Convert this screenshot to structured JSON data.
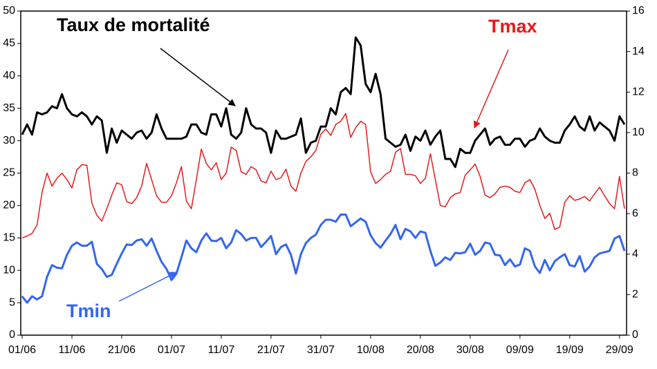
{
  "chart_data": {
    "type": "line",
    "categories": [
      "01/06",
      null,
      null,
      null,
      null,
      null,
      null,
      null,
      null,
      null,
      "11/06",
      null,
      null,
      null,
      null,
      null,
      null,
      null,
      null,
      null,
      "21/06",
      null,
      null,
      null,
      null,
      null,
      null,
      null,
      null,
      null,
      "01/07",
      null,
      null,
      null,
      null,
      null,
      null,
      null,
      null,
      null,
      "11/07",
      null,
      null,
      null,
      null,
      null,
      null,
      null,
      null,
      null,
      "21/07",
      null,
      null,
      null,
      null,
      null,
      null,
      null,
      null,
      null,
      "31/07",
      null,
      null,
      null,
      null,
      null,
      null,
      null,
      null,
      null,
      "10/08",
      null,
      null,
      null,
      null,
      null,
      null,
      null,
      null,
      null,
      "20/08",
      null,
      null,
      null,
      null,
      null,
      null,
      null,
      null,
      null,
      "30/08",
      null,
      null,
      null,
      null,
      null,
      null,
      null,
      null,
      null,
      "09/09",
      null,
      null,
      null,
      null,
      null,
      null,
      null,
      null,
      null,
      "19/09",
      null,
      null,
      null,
      null,
      null,
      null,
      null,
      null,
      null,
      "29/09",
      null
    ],
    "series": [
      {
        "name": "Taux de mortalité",
        "color": "#000000",
        "axis": "y2",
        "values": [
          9.9,
          10.4,
          9.9,
          11.0,
          10.9,
          11.0,
          11.3,
          11.2,
          11.9,
          11.2,
          10.9,
          10.8,
          11.0,
          10.8,
          10.4,
          10.8,
          10.6,
          9.0,
          10.2,
          9.5,
          10.1,
          9.9,
          9.7,
          10.0,
          10.1,
          9.7,
          10.0,
          10.9,
          10.2,
          9.7,
          9.7,
          9.7,
          9.7,
          9.8,
          10.4,
          10.4,
          10.0,
          9.9,
          10.9,
          10.9,
          10.3,
          11.2,
          9.9,
          9.7,
          10.0,
          11.2,
          10.4,
          10.2,
          10.2,
          10.0,
          9.0,
          10.1,
          9.7,
          9.7,
          9.8,
          9.9,
          10.7,
          9.0,
          9.5,
          9.6,
          10.3,
          10.3,
          11.2,
          10.9,
          12.0,
          12.2,
          11.9,
          14.7,
          14.3,
          12.4,
          12.0,
          12.9,
          11.9,
          9.7,
          9.5,
          9.3,
          9.4,
          9.9,
          9.1,
          9.8,
          9.6,
          10.1,
          9.4,
          9.8,
          10.1,
          8.7,
          8.7,
          8.3,
          9.2,
          9.0,
          9.0,
          9.6,
          9.9,
          10.2,
          9.4,
          9.7,
          9.8,
          9.4,
          9.4,
          9.7,
          9.7,
          9.3,
          9.6,
          9.7,
          10.2,
          9.8,
          9.6,
          9.5,
          9.5,
          10.1,
          10.4,
          10.8,
          10.3,
          10.1,
          10.8,
          10.1,
          10.5,
          10.3,
          10.1,
          9.6,
          10.8,
          10.4
        ]
      },
      {
        "name": "Tmax",
        "color": "#e41a1c",
        "values": [
          15,
          15.3,
          15.7,
          17,
          22,
          25,
          23,
          24.2,
          25,
          24,
          22.7,
          25.5,
          26.3,
          26.2,
          20.4,
          18.5,
          17.6,
          19.5,
          21.6,
          23.5,
          23.2,
          20.6,
          20.3,
          21.2,
          23,
          26.5,
          24,
          21.5,
          20.5,
          20.5,
          21.5,
          23.5,
          26,
          20.7,
          19.5,
          24,
          28.7,
          26.5,
          25.5,
          26.6,
          24,
          25,
          29,
          28.5,
          25.2,
          24.8,
          26,
          25.5,
          23.8,
          23.5,
          25.3,
          24,
          24.3,
          25.6,
          23,
          22.2,
          25,
          26.8,
          27.5,
          28.5,
          31,
          31.8,
          30.8,
          32.5,
          33,
          34.2,
          30.5,
          32,
          33,
          32.5,
          25.2,
          23.4,
          24,
          24.8,
          25.3,
          28.2,
          28.8,
          24.8,
          24.8,
          24.6,
          23.4,
          24.2,
          28,
          24,
          20,
          19.8,
          21.2,
          21.8,
          22,
          24.7,
          25.5,
          26.4,
          24.5,
          21.6,
          21.2,
          21.8,
          22.8,
          23,
          22.8,
          22.2,
          22,
          23.5,
          24,
          22.5,
          20,
          18,
          18.8,
          16.3,
          16.7,
          20.5,
          21.5,
          20.8,
          21,
          21.4,
          20.7,
          21.8,
          22.8,
          21.5,
          20.3,
          19.5,
          24.5,
          19.5
        ]
      },
      {
        "name": "Tmin",
        "color": "#3366ee",
        "values": [
          6,
          5,
          6,
          5.5,
          6,
          9,
          10.8,
          10.4,
          10.3,
          12.4,
          13.8,
          14.3,
          13.8,
          13.8,
          14.4,
          11,
          10.2,
          9,
          9.3,
          11,
          12.6,
          14,
          13.9,
          14.6,
          14.8,
          13.8,
          14.9,
          13,
          11.3,
          10.2,
          8.5,
          9.5,
          12,
          14.6,
          13.4,
          12.8,
          14.6,
          15.7,
          14.6,
          14.5,
          15,
          13.4,
          14.3,
          16.2,
          15.6,
          14.6,
          15,
          15,
          13.6,
          14.4,
          15.3,
          12.5,
          13.6,
          14,
          12.4,
          9.5,
          12.5,
          14.2,
          15,
          15.5,
          17,
          17.8,
          17.8,
          17.5,
          18.6,
          18.6,
          16.8,
          17.4,
          18,
          17.5,
          15.4,
          14.2,
          13.5,
          14.6,
          15.6,
          17,
          14.8,
          16.4,
          16,
          15,
          16,
          15.8,
          13,
          10.7,
          11.2,
          12,
          11.6,
          12.7,
          12.6,
          12.8,
          14.1,
          12.4,
          13,
          14.3,
          14.1,
          12.4,
          12.3,
          10.8,
          11.7,
          10.6,
          10.9,
          13.4,
          13,
          10.6,
          9.6,
          11.6,
          10,
          11.4,
          12,
          12.5,
          10.8,
          10.6,
          12.2,
          9.8,
          10.6,
          12,
          12.6,
          12.8,
          13,
          14.9,
          15.3,
          13
        ]
      }
    ],
    "ylim": [
      0,
      50
    ],
    "yticks": [
      0,
      5,
      10,
      15,
      20,
      25,
      30,
      35,
      40,
      45,
      50
    ],
    "y2lim": [
      0,
      16
    ],
    "y2ticks": [
      0,
      2,
      4,
      6,
      8,
      10,
      12,
      14,
      16
    ],
    "grid": false
  }
}
